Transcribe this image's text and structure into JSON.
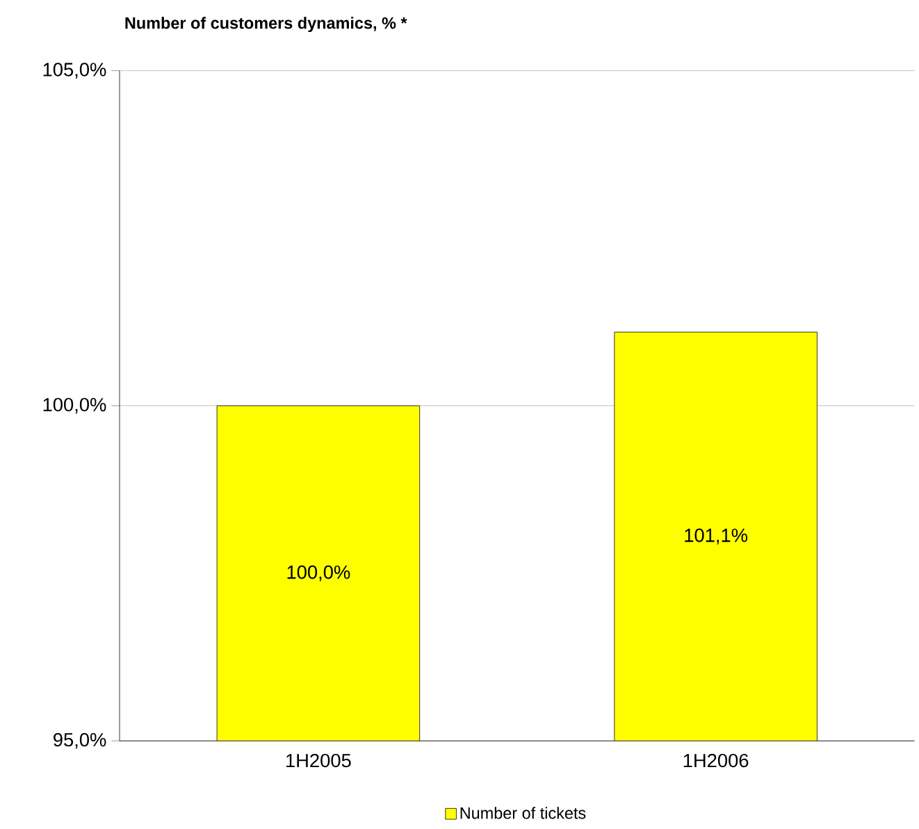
{
  "chart_data": {
    "type": "bar",
    "title": "Number of customers dynamics, % *",
    "categories": [
      "1H2005",
      "1H2006"
    ],
    "series": [
      {
        "name": "Number of tickets",
        "color": "#ffff00",
        "values": [
          100.0,
          101.1
        ],
        "value_labels": [
          "100,0%",
          "101,1%"
        ]
      }
    ],
    "ylim": [
      95,
      105
    ],
    "yticks": [
      {
        "value": 95,
        "label": "95,0%"
      },
      {
        "value": 100,
        "label": "100,0%"
      },
      {
        "value": 105,
        "label": "105,0%"
      }
    ],
    "grid": "y",
    "legend": "bottom"
  }
}
